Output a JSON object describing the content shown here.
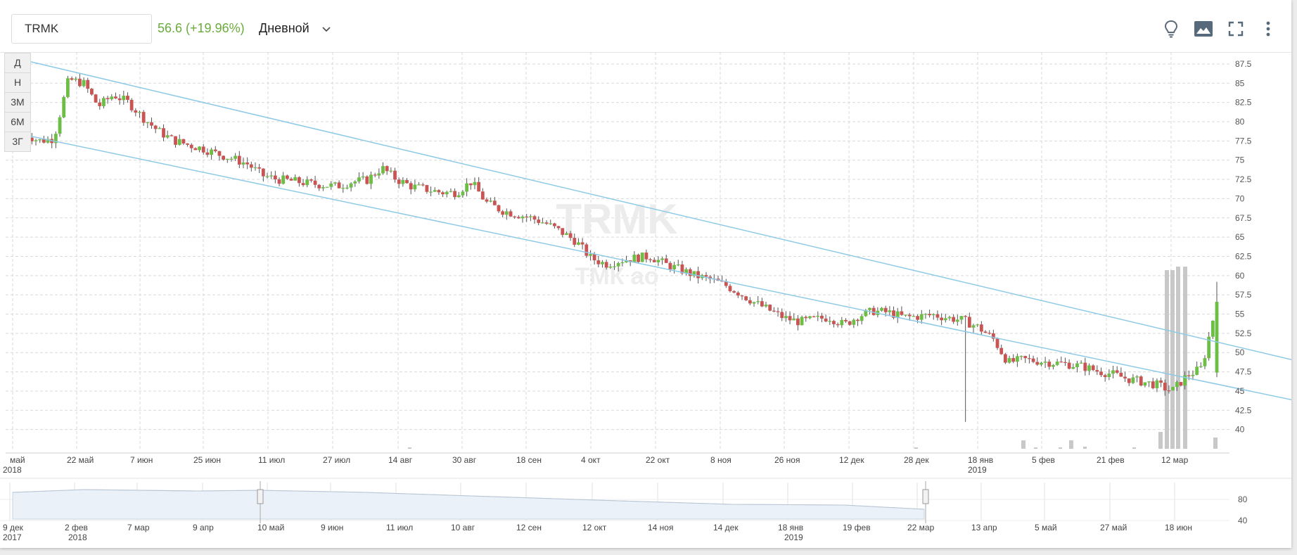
{
  "toolbar": {
    "ticker": "TRMK",
    "price_change": "56.6 (+19.96%)",
    "interval": "Дневной"
  },
  "icons": [
    "lightbulb-icon",
    "image-icon",
    "fullscreen-icon",
    "more-vertical-icon",
    "chevron-down-icon"
  ],
  "range_buttons": [
    "Д",
    "Н",
    "3М",
    "6М",
    "3Г"
  ],
  "watermark": {
    "line1": "TRMK",
    "line2": "ТМК ао"
  },
  "colors": {
    "up": "#6cbe45",
    "down": "#c95454",
    "channel": "#8ecae6",
    "volume": "#c8c8c8",
    "price_text": "#6aac3b",
    "navigator_fill": "#eaf1f8"
  },
  "chart_data": {
    "type": "candlestick",
    "title": "",
    "ylim": [
      37.5,
      88.5
    ],
    "y_ticks": [
      "87.5",
      "85",
      "82.5",
      "80",
      "77.5",
      "75",
      "72.5",
      "70",
      "67.5",
      "65",
      "62.5",
      "60",
      "57.5",
      "55",
      "52.5",
      "50",
      "47.5",
      "45",
      "42.5",
      "40"
    ],
    "x_ticks": [
      "май",
      "22 май",
      "7 июн",
      "25 июн",
      "11 июл",
      "27 июл",
      "14 авг",
      "30 авг",
      "18 сен",
      "4 окт",
      "22 окт",
      "8 ноя",
      "26 ноя",
      "12 дек",
      "28 дек",
      "18 янв",
      "5 фев",
      "21 фев",
      "12 мар"
    ],
    "x_year_labels": [
      {
        "label": "2018",
        "under": "май"
      },
      {
        "label": "2019",
        "under": "18 янв"
      }
    ],
    "close_path": [
      78.5,
      77.5,
      77.8,
      85.5,
      85,
      82,
      83.5,
      82.5,
      80.5,
      78.8,
      77.6,
      77,
      76.5,
      75.8,
      75.2,
      74.5,
      73,
      72.5,
      72.3,
      72,
      71.8,
      71.6,
      72.2,
      72.4,
      74,
      72.5,
      71.6,
      71.2,
      70.8,
      70.8,
      72.2,
      69.5,
      68.5,
      68,
      67.5,
      66.8,
      65.7,
      64.5,
      62.3,
      61.5,
      62,
      62.3,
      62.5,
      61.5,
      60.8,
      60,
      59.5,
      58.8,
      57.7,
      56.5,
      55.5,
      54.5,
      54,
      54.3,
      54.6,
      53.6,
      54.8,
      55.4,
      55.2,
      54.6,
      54.7,
      54.9,
      54.5,
      54.2,
      53.3,
      51.8,
      48.7,
      49.1,
      48.9,
      48.7,
      48.5,
      48.2,
      47.6,
      47.2,
      46.6,
      46.2,
      45.8,
      45,
      47,
      48,
      56.6
    ],
    "channel": {
      "upper": {
        "from": [
          0,
          88
        ],
        "to": [
          1,
          49
        ]
      },
      "lower": {
        "from": [
          0,
          78.3
        ],
        "to": [
          1,
          43.8
        ]
      }
    },
    "volume_spikes": [
      {
        "near": "5 фев",
        "height": "small"
      },
      {
        "near": "12 мар",
        "height": "large"
      }
    ],
    "navigator": {
      "x_ticks": [
        "9 дек",
        "2 фев",
        "7 мар",
        "9 апр",
        "10 май",
        "9 июн",
        "11 июл",
        "10 авг",
        "12 сен",
        "12 окт",
        "14 ноя",
        "14 дек",
        "18 янв",
        "19 фев",
        "22 мар",
        "13 апр",
        "5 май",
        "27 май",
        "18 июн"
      ],
      "year_labels": [
        "2017",
        "2018",
        "2019"
      ],
      "y_ticks": [
        "80",
        "40"
      ]
    }
  }
}
